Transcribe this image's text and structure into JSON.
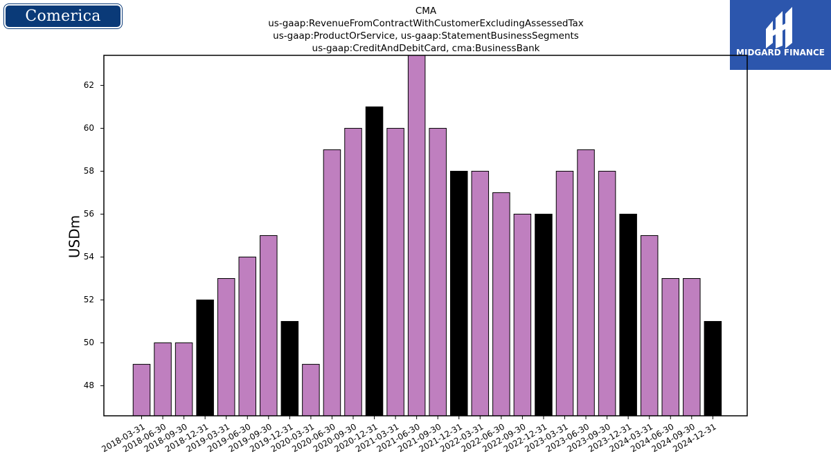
{
  "logos": {
    "left": {
      "text": "Comerica",
      "color": "#0a3a78"
    },
    "right": {
      "text": "MIDGARD FINANCE",
      "color": "#2c56ad"
    }
  },
  "chart_data": {
    "type": "bar",
    "title_lines": [
      "CMA",
      "us-gaap:RevenueFromContractWithCustomerExcludingAssessedTax",
      "us-gaap:ProductOrService, us-gaap:StatementBusinessSegments",
      "us-gaap:CreditAndDebitCard, cma:BusinessBank"
    ],
    "ylabel": "USDm",
    "xlabel": "",
    "ylim": [
      46.6,
      63.4
    ],
    "yticks": [
      48,
      50,
      52,
      54,
      56,
      58,
      60,
      62
    ],
    "grid": false,
    "categories": [
      "2018-03-31",
      "2018-06-30",
      "2018-09-30",
      "2018-12-31",
      "2019-03-31",
      "2019-06-30",
      "2019-09-30",
      "2019-12-31",
      "2020-03-31",
      "2020-06-30",
      "2020-09-30",
      "2020-12-31",
      "2021-03-31",
      "2021-06-30",
      "2021-09-30",
      "2021-12-31",
      "2022-03-31",
      "2022-06-30",
      "2022-09-30",
      "2022-12-31",
      "2023-03-31",
      "2023-06-30",
      "2023-09-30",
      "2023-12-31",
      "2024-03-31",
      "2024-06-30",
      "2024-09-30",
      "2024-12-31"
    ],
    "values": [
      49,
      50,
      50,
      52,
      53,
      54,
      55,
      51,
      49,
      59,
      60,
      61,
      60,
      64,
      60,
      58,
      58,
      57,
      56,
      56,
      58,
      59,
      58,
      56,
      55,
      53,
      53,
      51
    ],
    "colors": {
      "quarter": "#bf7fbf",
      "year_end": "#000000",
      "edge": "#000000"
    }
  }
}
